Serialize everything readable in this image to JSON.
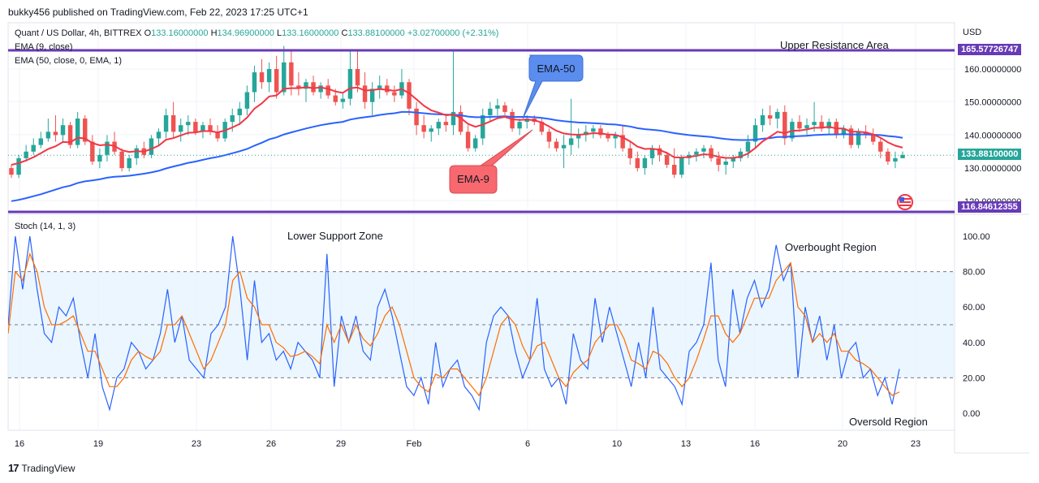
{
  "header": {
    "publisher_line": "bukky456 published on TradingView.com, Feb 22, 2023 17:25 UTC+1"
  },
  "footer": {
    "brand": "TradingView",
    "logo_icon": "tradingview-logo-icon"
  },
  "legend": {
    "symbol": "Quant / US Dollar, 4h, BITTREX",
    "open_label": "O",
    "open": "133.16000000",
    "high_label": "H",
    "high": "134.96900000",
    "low_label": "L",
    "low": "133.16000000",
    "close_label": "C",
    "close": "133.88100000",
    "change": "+3.02700000 (+2.31%)",
    "ema9": "EMA (9, close)",
    "ema50": "EMA (50, close, 0, EMA, 1)",
    "stoch": "Stoch (14, 1, 3)"
  },
  "annotations": {
    "upper_resistance": "Upper Resistance Area",
    "lower_support": "Lower Support Zone",
    "overbought": "Overbought Region",
    "oversold": "Oversold Region",
    "callout_ema50": "EMA-50",
    "callout_ema9": "EMA-9"
  },
  "price_axis": {
    "currency": "USD",
    "ticks": [
      "160.00000000",
      "150.00000000",
      "140.00000000",
      "130.00000000",
      "120.00000000"
    ],
    "resistance_badge": "165.57726747",
    "current_badge": "133.88100000",
    "support_badge": "116.84612355"
  },
  "stoch_axis": {
    "ticks": [
      "100.00",
      "80.00",
      "60.00",
      "40.00",
      "20.00",
      "0.00"
    ]
  },
  "time_axis": {
    "labels": [
      "16",
      "19",
      "23",
      "26",
      "29",
      "Feb",
      "6",
      "10",
      "13",
      "16",
      "20",
      "23"
    ]
  },
  "colors": {
    "up": "#26a69a",
    "down": "#ef5350",
    "ema9": "#f23645",
    "ema50": "#2962ff",
    "level_line": "#673ab7",
    "stoch_k": "#2962ff",
    "stoch_d": "#ff6d00",
    "stoch_band": "#e3f2fd",
    "callout_blue": "#5b8def",
    "callout_red": "#f7686f"
  },
  "chart_data": {
    "type": "candlestick",
    "symbol": "QNTUSD",
    "interval": "4h",
    "price_range": [
      116,
      168
    ],
    "levels": {
      "upper_resistance": 165.57726747,
      "lower_support": 116.84612355,
      "last": 133.881
    },
    "candles": [
      [
        130,
        131,
        127,
        128
      ],
      [
        128,
        134,
        127,
        133
      ],
      [
        133,
        137,
        132,
        135
      ],
      [
        135,
        139,
        134,
        137
      ],
      [
        137,
        141,
        136,
        139
      ],
      [
        139,
        145,
        138,
        141
      ],
      [
        141,
        146,
        138,
        140
      ],
      [
        140,
        145,
        138,
        143
      ],
      [
        143,
        144,
        136,
        137
      ],
      [
        137,
        147,
        136,
        145
      ],
      [
        145,
        146,
        137,
        138
      ],
      [
        138,
        140,
        131,
        132
      ],
      [
        132,
        136,
        130,
        134
      ],
      [
        134,
        140,
        132,
        138
      ],
      [
        138,
        141,
        134,
        135
      ],
      [
        135,
        136,
        129,
        130
      ],
      [
        130,
        134,
        129,
        133
      ],
      [
        133,
        137,
        131,
        136
      ],
      [
        136,
        138,
        133,
        134
      ],
      [
        134,
        140,
        133,
        139
      ],
      [
        139,
        142,
        137,
        141
      ],
      [
        141,
        148,
        139,
        146
      ],
      [
        146,
        150,
        139,
        141
      ],
      [
        141,
        145,
        138,
        143
      ],
      [
        143,
        146,
        140,
        144
      ],
      [
        144,
        145,
        140,
        141
      ],
      [
        141,
        144,
        139,
        143
      ],
      [
        143,
        145,
        140,
        141
      ],
      [
        141,
        143,
        138,
        139
      ],
      [
        139,
        145,
        138,
        144
      ],
      [
        144,
        148,
        141,
        146
      ],
      [
        146,
        150,
        143,
        148
      ],
      [
        148,
        155,
        146,
        153
      ],
      [
        153,
        161,
        150,
        159
      ],
      [
        159,
        163,
        154,
        156
      ],
      [
        156,
        162,
        153,
        160
      ],
      [
        160,
        164,
        151,
        153
      ],
      [
        153,
        167,
        152,
        162
      ],
      [
        162,
        166,
        152,
        155
      ],
      [
        155,
        159,
        152,
        154
      ],
      [
        154,
        157,
        150,
        156
      ],
      [
        156,
        158,
        152,
        153
      ],
      [
        153,
        156,
        151,
        155
      ],
      [
        155,
        157,
        151,
        152
      ],
      [
        152,
        154,
        149,
        150
      ],
      [
        150,
        153,
        148,
        151
      ],
      [
        151,
        166,
        149,
        160
      ],
      [
        160,
        166,
        153,
        155
      ],
      [
        155,
        159,
        148,
        150
      ],
      [
        150,
        156,
        146,
        154
      ],
      [
        154,
        158,
        151,
        155
      ],
      [
        155,
        157,
        152,
        153
      ],
      [
        153,
        155,
        150,
        152
      ],
      [
        152,
        160,
        151,
        156
      ],
      [
        156,
        157,
        146,
        148
      ],
      [
        148,
        150,
        140,
        143
      ],
      [
        143,
        146,
        139,
        141
      ],
      [
        141,
        143,
        138,
        142
      ],
      [
        142,
        145,
        140,
        144
      ],
      [
        144,
        146,
        141,
        143
      ],
      [
        143,
        166,
        140,
        147
      ],
      [
        147,
        149,
        140,
        141
      ],
      [
        141,
        143,
        135,
        136
      ],
      [
        136,
        140,
        135,
        139
      ],
      [
        139,
        148,
        137,
        146
      ],
      [
        146,
        150,
        144,
        148
      ],
      [
        148,
        151,
        146,
        149
      ],
      [
        149,
        150,
        146,
        147
      ],
      [
        147,
        148,
        141,
        142
      ],
      [
        142,
        145,
        140,
        144
      ],
      [
        144,
        146,
        142,
        145
      ],
      [
        145,
        146,
        143,
        144
      ],
      [
        144,
        145,
        140,
        141
      ],
      [
        141,
        142,
        136,
        138
      ],
      [
        138,
        139,
        135,
        136
      ],
      [
        136,
        140,
        130,
        137
      ],
      [
        137,
        151,
        134,
        139
      ],
      [
        139,
        142,
        136,
        140
      ],
      [
        140,
        143,
        138,
        141
      ],
      [
        141,
        143,
        139,
        142
      ],
      [
        142,
        143,
        139,
        140
      ],
      [
        140,
        141,
        138,
        139
      ],
      [
        139,
        141,
        136,
        140
      ],
      [
        140,
        143,
        135,
        136
      ],
      [
        136,
        138,
        131,
        133
      ],
      [
        133,
        135,
        129,
        130
      ],
      [
        130,
        134,
        128,
        133
      ],
      [
        133,
        137,
        131,
        136
      ],
      [
        136,
        137,
        132,
        134
      ],
      [
        134,
        135,
        130,
        131
      ],
      [
        131,
        136,
        127,
        128
      ],
      [
        128,
        134,
        127,
        133
      ],
      [
        133,
        135,
        131,
        134
      ],
      [
        134,
        136,
        132,
        135
      ],
      [
        135,
        137,
        133,
        136
      ],
      [
        136,
        137,
        132,
        133
      ],
      [
        133,
        135,
        129,
        131
      ],
      [
        131,
        133,
        128,
        132
      ],
      [
        132,
        134,
        130,
        133
      ],
      [
        133,
        136,
        132,
        135
      ],
      [
        135,
        140,
        133,
        138
      ],
      [
        138,
        145,
        136,
        143
      ],
      [
        143,
        148,
        141,
        146
      ],
      [
        146,
        149,
        143,
        145
      ],
      [
        145,
        148,
        142,
        147
      ],
      [
        147,
        149,
        137,
        139
      ],
      [
        139,
        145,
        138,
        144
      ],
      [
        144,
        146,
        141,
        142
      ],
      [
        142,
        145,
        140,
        143
      ],
      [
        143,
        150,
        141,
        144
      ],
      [
        144,
        146,
        141,
        142
      ],
      [
        142,
        145,
        140,
        144
      ],
      [
        144,
        145,
        139,
        140
      ],
      [
        140,
        143,
        139,
        142
      ],
      [
        142,
        143,
        136,
        137
      ],
      [
        137,
        142,
        136,
        141
      ],
      [
        141,
        143,
        139,
        140
      ],
      [
        140,
        142,
        137,
        138
      ],
      [
        138,
        139,
        133,
        135
      ],
      [
        135,
        136,
        131,
        132
      ],
      [
        132,
        135,
        130,
        133
      ],
      [
        133,
        135,
        133,
        134
      ]
    ],
    "ema9": [
      131,
      131.5,
      132.3,
      133.3,
      134.5,
      135.8,
      136.6,
      137.9,
      137.8,
      139.2,
      139.0,
      137.6,
      136.9,
      137.1,
      136.7,
      135.4,
      134.9,
      135.1,
      135.0,
      135.8,
      136.8,
      138.6,
      139.1,
      139.9,
      140.7,
      140.8,
      141.2,
      141.2,
      140.8,
      141.4,
      142.3,
      143.4,
      145.3,
      148.0,
      149.6,
      151.7,
      152.0,
      154.0,
      154.2,
      154.2,
      154.5,
      154.2,
      154.4,
      154.0,
      153.2,
      152.8,
      154.2,
      154.4,
      153.5,
      153.6,
      153.9,
      153.7,
      153.4,
      153.9,
      152.7,
      150.8,
      148.9,
      147.5,
      146.8,
      146.0,
      146.2,
      145.2,
      143.4,
      142.5,
      143.2,
      144.1,
      145.1,
      145.5,
      144.8,
      144.6,
      144.7,
      144.5,
      143.8,
      142.6,
      141.3,
      140.5,
      140.2,
      140.1,
      140.3,
      140.6,
      140.5,
      140.2,
      140.1,
      139.3,
      138.1,
      136.5,
      135.8,
      135.9,
      135.5,
      134.6,
      133.3,
      133.2,
      133.4,
      133.7,
      134.2,
      134.0,
      133.4,
      133.1,
      133.1,
      133.5,
      134.4,
      136.1,
      138.1,
      139.5,
      141.0,
      140.6,
      141.3,
      141.4,
      141.7,
      142.2,
      142.2,
      142.5,
      142.0,
      142.0,
      141.0,
      141.0,
      140.8,
      140.2,
      139.2,
      137.8,
      136.8,
      136.2
    ],
    "ema50": [
      120,
      120.4,
      120.9,
      121.5,
      122.1,
      122.8,
      123.5,
      124.2,
      124.7,
      125.5,
      126.0,
      126.3,
      126.6,
      127.1,
      127.4,
      127.5,
      127.7,
      128.0,
      128.3,
      128.7,
      129.2,
      129.9,
      130.5,
      131.0,
      131.6,
      132.0,
      132.5,
      133.0,
      133.4,
      133.9,
      134.5,
      135.1,
      135.8,
      136.8,
      137.7,
      138.7,
      139.3,
      140.2,
      140.8,
      141.4,
      142.0,
      142.5,
      143.0,
      143.4,
      143.7,
      144.0,
      144.7,
      145.1,
      145.4,
      145.7,
      146.1,
      146.4,
      146.6,
      147.0,
      147.0,
      146.8,
      146.6,
      146.4,
      146.3,
      146.2,
      146.2,
      146.0,
      145.6,
      145.4,
      145.4,
      145.5,
      145.6,
      145.7,
      145.5,
      145.5,
      145.5,
      145.4,
      145.2,
      144.9,
      144.5,
      144.2,
      144.0,
      143.8,
      143.7,
      143.6,
      143.5,
      143.3,
      143.2,
      142.9,
      142.6,
      142.1,
      141.8,
      141.6,
      141.4,
      141.0,
      140.6,
      140.3,
      140.0,
      139.8,
      139.6,
      139.4,
      139.1,
      138.8,
      138.6,
      138.5,
      138.5,
      138.6,
      138.9,
      139.1,
      139.4,
      139.4,
      139.6,
      139.7,
      139.8,
      140.0,
      140.1,
      140.2,
      140.2,
      140.3,
      140.2,
      140.2,
      140.2,
      140.1,
      140.0,
      139.7,
      139.5,
      139.2
    ],
    "stoch_k": [
      50,
      100,
      70,
      100,
      70,
      45,
      40,
      60,
      55,
      65,
      40,
      20,
      45,
      15,
      2,
      20,
      25,
      40,
      35,
      25,
      30,
      45,
      70,
      40,
      55,
      30,
      25,
      20,
      45,
      50,
      60,
      100,
      70,
      30,
      75,
      40,
      45,
      30,
      35,
      25,
      40,
      35,
      30,
      20,
      90,
      15,
      55,
      40,
      55,
      35,
      30,
      60,
      70,
      55,
      35,
      15,
      10,
      20,
      5,
      40,
      15,
      25,
      30,
      15,
      10,
      2,
      40,
      55,
      60,
      55,
      35,
      20,
      30,
      65,
      25,
      15,
      20,
      5,
      45,
      30,
      25,
      65,
      40,
      60,
      45,
      30,
      15,
      40,
      20,
      60,
      25,
      20,
      15,
      5,
      35,
      40,
      50,
      85,
      30,
      15,
      70,
      45,
      65,
      75,
      60,
      70,
      95,
      75,
      85,
      20,
      60,
      40,
      55,
      30,
      50,
      20,
      35,
      40,
      20,
      25,
      10,
      20,
      5,
      25
    ],
    "stoch_d": [
      45,
      80,
      75,
      90,
      80,
      60,
      50,
      50,
      52,
      55,
      45,
      35,
      35,
      25,
      15,
      15,
      20,
      30,
      35,
      32,
      30,
      35,
      50,
      50,
      55,
      45,
      35,
      25,
      30,
      40,
      50,
      75,
      80,
      65,
      60,
      50,
      50,
      40,
      37,
      32,
      33,
      35,
      32,
      28,
      50,
      40,
      50,
      40,
      50,
      42,
      38,
      45,
      55,
      60,
      50,
      35,
      20,
      15,
      12,
      22,
      20,
      25,
      25,
      20,
      15,
      10,
      20,
      35,
      50,
      55,
      50,
      38,
      30,
      38,
      40,
      30,
      20,
      15,
      23,
      27,
      30,
      40,
      45,
      50,
      50,
      42,
      30,
      28,
      25,
      35,
      33,
      28,
      20,
      15,
      20,
      30,
      42,
      55,
      55,
      45,
      40,
      45,
      55,
      65,
      65,
      65,
      75,
      80,
      85,
      60,
      55,
      40,
      45,
      40,
      45,
      35,
      35,
      30,
      28,
      25,
      20,
      15,
      10,
      12
    ],
    "stoch_levels": [
      80,
      50,
      20
    ]
  }
}
